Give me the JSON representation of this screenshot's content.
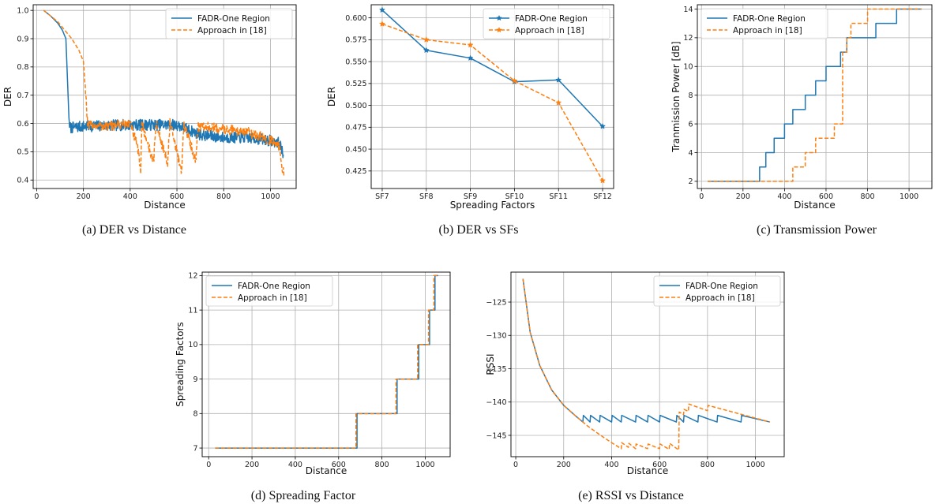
{
  "colors": {
    "blue": "#1f77b4",
    "orange": "#ff7f0e",
    "grid": "#b0b0b0"
  },
  "chart_data": [
    {
      "id": "a",
      "type": "line",
      "caption": "(a) DER vs Distance",
      "xlabel": "Distance",
      "ylabel": "DER",
      "xlim": [
        -15,
        1110
      ],
      "ylim": [
        0.37,
        1.02
      ],
      "xticks": [
        0,
        200,
        400,
        600,
        800,
        1000
      ],
      "yticks": [
        0.4,
        0.5,
        0.6,
        0.7,
        0.8,
        0.9,
        1.0
      ],
      "ytick_labels": [
        "0.4",
        "0.5",
        "0.6",
        "0.7",
        "0.8",
        "0.9",
        "1.0"
      ],
      "grid": true,
      "legend_position": "top-right",
      "series": [
        {
          "name": "FADR-One Region",
          "style": "solid",
          "color": "#1f77b4",
          "x": [
            30,
            60,
            90,
            110,
            125,
            132,
            138,
            142,
            150,
            200,
            400,
            600,
            700,
            800,
            900,
            1000,
            1040,
            1055
          ],
          "y": [
            1.0,
            0.98,
            0.955,
            0.93,
            0.9,
            0.75,
            0.62,
            0.585,
            0.585,
            0.59,
            0.595,
            0.595,
            0.56,
            0.55,
            0.55,
            0.54,
            0.53,
            0.49
          ],
          "noise": 0.02
        },
        {
          "name": "Approach in [18]",
          "style": "dashed",
          "color": "#ff7f0e",
          "x": [
            30,
            60,
            90,
            120,
            150,
            180,
            200,
            212,
            218,
            230,
            300,
            400,
            430,
            445,
            450,
            500,
            510,
            560,
            570,
            620,
            630,
            680,
            690,
            800,
            900,
            1000,
            1040,
            1050,
            1058
          ],
          "y": [
            1.0,
            0.98,
            0.96,
            0.93,
            0.9,
            0.86,
            0.82,
            0.68,
            0.59,
            0.595,
            0.59,
            0.6,
            0.52,
            0.44,
            0.6,
            0.46,
            0.6,
            0.46,
            0.6,
            0.43,
            0.6,
            0.47,
            0.59,
            0.58,
            0.57,
            0.54,
            0.52,
            0.45,
            0.41
          ],
          "noise": 0.018
        }
      ]
    },
    {
      "id": "b",
      "type": "line",
      "caption": "(b) DER vs SFs",
      "xlabel": "Spreading Factors",
      "ylabel": "DER",
      "categories": [
        "SF7",
        "SF8",
        "SF9",
        "SF10",
        "SF11",
        "SF12"
      ],
      "ylim": [
        0.405,
        0.615
      ],
      "yticks": [
        0.425,
        0.45,
        0.475,
        0.5,
        0.525,
        0.55,
        0.575,
        0.6
      ],
      "ytick_labels": [
        "0.425",
        "0.450",
        "0.475",
        "0.500",
        "0.525",
        "0.550",
        "0.575",
        "0.600"
      ],
      "grid": true,
      "legend_position": "top-right",
      "series": [
        {
          "name": "FADR-One Region",
          "style": "solid",
          "color": "#1f77b4",
          "marker": "star",
          "values": [
            0.609,
            0.563,
            0.554,
            0.527,
            0.529,
            0.476
          ]
        },
        {
          "name": "Approach in [18]",
          "style": "dashed",
          "color": "#ff7f0e",
          "marker": "star",
          "values": [
            0.593,
            0.575,
            0.569,
            0.528,
            0.503,
            0.414
          ]
        }
      ]
    },
    {
      "id": "c",
      "type": "line",
      "caption": "(c) Transmission Power",
      "xlabel": "Distance",
      "ylabel": "Tranmission Power [dB]",
      "xlim": [
        -20,
        1110
      ],
      "ylim": [
        1.5,
        14.3
      ],
      "xticks": [
        0,
        200,
        400,
        600,
        800,
        1000
      ],
      "yticks": [
        2,
        4,
        6,
        8,
        10,
        12,
        14
      ],
      "ytick_labels": [
        "2",
        "4",
        "6",
        "8",
        "10",
        "12",
        "14"
      ],
      "grid": true,
      "legend_position": "top-left",
      "series": [
        {
          "name": "FADR-One Region",
          "style": "solid",
          "color": "#1f77b4",
          "step": true,
          "x": [
            30,
            280,
            310,
            350,
            400,
            440,
            500,
            550,
            600,
            670,
            700,
            760,
            840,
            940,
            1060
          ],
          "y": [
            2,
            3,
            4,
            5,
            6,
            7,
            8,
            9,
            10,
            11,
            12,
            12,
            13,
            14,
            14
          ]
        },
        {
          "name": "Approach in [18]",
          "style": "dashed",
          "color": "#ff7f0e",
          "step": true,
          "x": [
            30,
            440,
            470,
            500,
            550,
            600,
            640,
            680,
            700,
            720,
            800,
            1060
          ],
          "y": [
            2,
            3,
            3,
            4,
            5,
            5,
            6,
            11,
            12,
            13,
            14,
            14
          ]
        }
      ]
    },
    {
      "id": "d",
      "type": "line",
      "caption": "(d) Spreading Factor",
      "xlabel": "Distance",
      "ylabel": "Spreading Factors",
      "xlim": [
        -30,
        1115
      ],
      "ylim": [
        6.75,
        12.1
      ],
      "xticks": [
        0,
        200,
        400,
        600,
        800,
        1000
      ],
      "yticks": [
        7,
        8,
        9,
        10,
        11,
        12
      ],
      "ytick_labels": [
        "7",
        "8",
        "9",
        "10",
        "11",
        "12"
      ],
      "grid": true,
      "legend_position": "top-left",
      "series": [
        {
          "name": "FADR-One Region",
          "style": "solid",
          "color": "#1f77b4",
          "step": true,
          "x": [
            30,
            685,
            870,
            970,
            1020,
            1045,
            1060
          ],
          "y": [
            7,
            8,
            9,
            10,
            11,
            12,
            12
          ]
        },
        {
          "name": "Approach in [18]",
          "style": "dashed",
          "color": "#ff7f0e",
          "step": true,
          "x": [
            30,
            680,
            865,
            965,
            1015,
            1040,
            1060
          ],
          "y": [
            7,
            8,
            9,
            10,
            11,
            12,
            12
          ]
        }
      ]
    },
    {
      "id": "e",
      "type": "line",
      "caption": "(e) RSSI vs Distance",
      "xlabel": "Distance",
      "ylabel": "RSSI",
      "xlim": [
        -20,
        1120
      ],
      "ylim": [
        -148.2,
        -120.5
      ],
      "xticks": [
        0,
        200,
        400,
        600,
        800,
        1000
      ],
      "yticks": [
        -145,
        -140,
        -135,
        -130,
        -125
      ],
      "ytick_labels": [
        "−145",
        "−140",
        "−135",
        "−130",
        "−125"
      ],
      "grid": true,
      "legend_position": "top-right",
      "series": [
        {
          "name": "FADR-One Region",
          "style": "solid",
          "color": "#1f77b4",
          "x": [
            30,
            60,
            100,
            150,
            200,
            250,
            280,
            282,
            310,
            312,
            350,
            352,
            400,
            402,
            440,
            442,
            500,
            502,
            550,
            552,
            600,
            602,
            670,
            672,
            700,
            702,
            760,
            762,
            840,
            842,
            940,
            942,
            1060
          ],
          "y": [
            -121.5,
            -129.5,
            -134.5,
            -138.2,
            -140.5,
            -142.1,
            -143.0,
            -142.0,
            -143.0,
            -142.0,
            -143.0,
            -142.0,
            -143.0,
            -142.0,
            -143.0,
            -142.0,
            -143.0,
            -142.0,
            -143.0,
            -142.0,
            -143.0,
            -142.0,
            -143.0,
            -142.0,
            -143.0,
            -142.0,
            -143.0,
            -142.0,
            -143.0,
            -142.0,
            -143.0,
            -142.0,
            -143.0
          ]
        },
        {
          "name": "Approach in [18]",
          "style": "dashed",
          "color": "#ff7f0e",
          "x": [
            30,
            60,
            100,
            150,
            200,
            250,
            300,
            350,
            400,
            440,
            442,
            470,
            472,
            500,
            502,
            550,
            552,
            600,
            602,
            640,
            642,
            680,
            682,
            700,
            702,
            720,
            722,
            800,
            802,
            1060
          ],
          "y": [
            -121.5,
            -129.5,
            -134.5,
            -138.2,
            -140.5,
            -142.1,
            -143.6,
            -144.9,
            -146.1,
            -147.0,
            -146.1,
            -146.8,
            -146.2,
            -147.0,
            -146.3,
            -147.0,
            -146.3,
            -147.0,
            -146.3,
            -147.1,
            -146.2,
            -147.2,
            -141.5,
            -141.9,
            -141.1,
            -141.4,
            -140.3,
            -141.3,
            -140.5,
            -143.0
          ]
        }
      ]
    }
  ]
}
